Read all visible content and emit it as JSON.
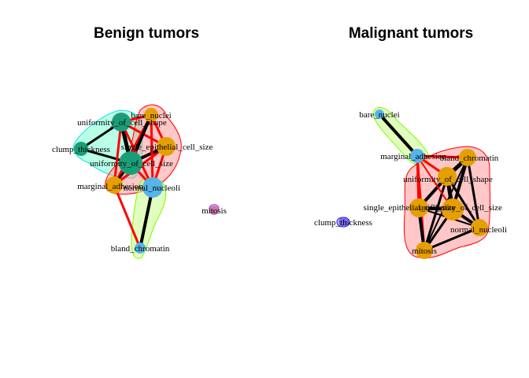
{
  "panels": [
    {
      "title": "Benign tumors",
      "nodes": [
        {
          "id": "bare_nuclei",
          "label": "bare_nuclei",
          "color": "#E69F00"
        },
        {
          "id": "uniformity_of_cell_shape",
          "label": "uniformity_of_cell_shape",
          "color": "#1B9E77"
        },
        {
          "id": "clump_thickness",
          "label": "clump_thickness",
          "color": "#1B9E77"
        },
        {
          "id": "single_epithelial_cell_size",
          "label": "single_epithelial_cell_size",
          "color": "#E69F00"
        },
        {
          "id": "uniformity_of_cell_size",
          "label": "uniformity_of_cell_size",
          "color": "#1B9E77"
        },
        {
          "id": "marginal_adhesion",
          "label": "marginal_adhesion",
          "color": "#E69F00"
        },
        {
          "id": "normal_nucleoli",
          "label": "normal_nucleoli",
          "color": "#56B4E9"
        },
        {
          "id": "mitosis",
          "label": "mitosis",
          "color": "#CC79A7"
        },
        {
          "id": "bland_chromatin",
          "label": "bland_chromatin",
          "color": "#56B4E9"
        }
      ],
      "groups": [
        {
          "fill": "#7FFFD4",
          "stroke": "#00E5EE",
          "members": [
            "uniformity_of_cell_shape",
            "clump_thickness",
            "uniformity_of_cell_size"
          ]
        },
        {
          "fill": "#FF9999",
          "stroke": "#FF0000",
          "members": [
            "bare_nuclei",
            "single_epithelial_cell_size",
            "marginal_adhesion"
          ]
        },
        {
          "fill": "#C6FF8A",
          "stroke": "#7CFC00",
          "members": [
            "normal_nucleoli",
            "bland_chromatin"
          ]
        },
        {
          "fill": "#D8B4F0",
          "stroke": "#8A2BE2",
          "members": [
            "mitosis"
          ]
        }
      ],
      "edges": [
        {
          "from": "uniformity_of_cell_shape",
          "to": "clump_thickness",
          "width": 3,
          "color": "#000000"
        },
        {
          "from": "uniformity_of_cell_shape",
          "to": "uniformity_of_cell_size",
          "width": 5,
          "color": "#000000"
        },
        {
          "from": "clump_thickness",
          "to": "uniformity_of_cell_size",
          "width": 3,
          "color": "#000000"
        },
        {
          "from": "bare_nuclei",
          "to": "single_epithelial_cell_size",
          "width": 3,
          "color": "#FF0000"
        },
        {
          "from": "bare_nuclei",
          "to": "marginal_adhesion",
          "width": 3,
          "color": "#FF0000"
        },
        {
          "from": "single_epithelial_cell_size",
          "to": "marginal_adhesion",
          "width": 3,
          "color": "#FF0000"
        },
        {
          "from": "uniformity_of_cell_shape",
          "to": "bare_nuclei",
          "width": 3,
          "color": "#FF0000"
        },
        {
          "from": "uniformity_of_cell_shape",
          "to": "single_epithelial_cell_size",
          "width": 3,
          "color": "#FF0000"
        },
        {
          "from": "uniformity_of_cell_size",
          "to": "bare_nuclei",
          "width": 4,
          "color": "#000000"
        },
        {
          "from": "uniformity_of_cell_size",
          "to": "single_epithelial_cell_size",
          "width": 4,
          "color": "#000000"
        },
        {
          "from": "uniformity_of_cell_size",
          "to": "marginal_adhesion",
          "width": 3,
          "color": "#000000"
        },
        {
          "from": "uniformity_of_cell_size",
          "to": "normal_nucleoli",
          "width": 3,
          "color": "#FF0000"
        },
        {
          "from": "bare_nuclei",
          "to": "normal_nucleoli",
          "width": 3,
          "color": "#FF0000"
        },
        {
          "from": "single_epithelial_cell_size",
          "to": "normal_nucleoli",
          "width": 3,
          "color": "#FF0000"
        },
        {
          "from": "uniformity_of_cell_shape",
          "to": "marginal_adhesion",
          "width": 3,
          "color": "#FF0000"
        },
        {
          "from": "normal_nucleoli",
          "to": "bland_chromatin",
          "width": 4,
          "color": "#000000"
        },
        {
          "from": "marginal_adhesion",
          "to": "bland_chromatin",
          "width": 3,
          "color": "#FF0000"
        },
        {
          "from": "uniformity_of_cell_shape",
          "to": "normal_nucleoli",
          "width": 3,
          "color": "#FF0000"
        }
      ]
    },
    {
      "title": "Malignant tumors",
      "nodes": [
        {
          "id": "bare_nuclei",
          "label": "bare_nuclei",
          "color": "#56B4E9"
        },
        {
          "id": "marginal_adhesion",
          "label": "marginal_adhesion",
          "color": "#56B4E9"
        },
        {
          "id": "bland_chromatin",
          "label": "bland_chromatin",
          "color": "#E69F00"
        },
        {
          "id": "uniformity_of_cell_shape",
          "label": "uniformity_of_cell_shape",
          "color": "#E69F00"
        },
        {
          "id": "single_epithelial_cell_size",
          "label": "single_epithelial_cell_size",
          "color": "#E69F00"
        },
        {
          "id": "uniformity_of_cell_size",
          "label": "uniformity_of_cell_size",
          "color": "#E69F00"
        },
        {
          "id": "normal_nucleoli",
          "label": "normal_nucleoli",
          "color": "#E69F00"
        },
        {
          "id": "clump_thickness",
          "label": "clump_thickness",
          "color": "#7B68EE"
        },
        {
          "id": "mitosis",
          "label": "mitosis",
          "color": "#E69F00"
        }
      ],
      "groups": [
        {
          "fill": "#C6FF8A",
          "stroke": "#7CFC00",
          "members": [
            "bare_nuclei",
            "marginal_adhesion"
          ]
        },
        {
          "fill": "#FF9999",
          "stroke": "#FF0000",
          "members": [
            "bland_chromatin",
            "uniformity_of_cell_shape",
            "single_epithelial_cell_size",
            "uniformity_of_cell_size",
            "normal_nucleoli",
            "mitosis"
          ]
        },
        {
          "fill": "#D8B4F0",
          "stroke": "#0000FF",
          "members": [
            "clump_thickness"
          ]
        }
      ],
      "edges": [
        {
          "from": "bare_nuclei",
          "to": "marginal_adhesion",
          "width": 4,
          "color": "#000000"
        },
        {
          "from": "marginal_adhesion",
          "to": "bland_chromatin",
          "width": 3,
          "color": "#FF0000"
        },
        {
          "from": "marginal_adhesion",
          "to": "uniformity_of_cell_shape",
          "width": 3,
          "color": "#FF0000"
        },
        {
          "from": "marginal_adhesion",
          "to": "mitosis",
          "width": 3,
          "color": "#FF0000"
        },
        {
          "from": "marginal_adhesion",
          "to": "single_epithelial_cell_size",
          "width": 3,
          "color": "#FF0000"
        },
        {
          "from": "bland_chromatin",
          "to": "uniformity_of_cell_shape",
          "width": 5,
          "color": "#000000"
        },
        {
          "from": "bland_chromatin",
          "to": "uniformity_of_cell_size",
          "width": 4,
          "color": "#000000"
        },
        {
          "from": "bland_chromatin",
          "to": "normal_nucleoli",
          "width": 3,
          "color": "#000000"
        },
        {
          "from": "uniformity_of_cell_shape",
          "to": "uniformity_of_cell_size",
          "width": 5,
          "color": "#000000"
        },
        {
          "from": "uniformity_of_cell_shape",
          "to": "single_epithelial_cell_size",
          "width": 4,
          "color": "#000000"
        },
        {
          "from": "uniformity_of_cell_shape",
          "to": "normal_nucleoli",
          "width": 3,
          "color": "#000000"
        },
        {
          "from": "single_epithelial_cell_size",
          "to": "uniformity_of_cell_size",
          "width": 4,
          "color": "#000000"
        },
        {
          "from": "single_epithelial_cell_size",
          "to": "mitosis",
          "width": 4,
          "color": "#000000"
        },
        {
          "from": "uniformity_of_cell_size",
          "to": "normal_nucleoli",
          "width": 4,
          "color": "#000000"
        },
        {
          "from": "uniformity_of_cell_size",
          "to": "mitosis",
          "width": 3,
          "color": "#000000"
        },
        {
          "from": "normal_nucleoli",
          "to": "mitosis",
          "width": 3,
          "color": "#000000"
        },
        {
          "from": "single_epithelial_cell_size",
          "to": "normal_nucleoli",
          "width": 2,
          "color": "#000000"
        },
        {
          "from": "uniformity_of_cell_shape",
          "to": "mitosis",
          "width": 3,
          "color": "#000000"
        },
        {
          "from": "bland_chromatin",
          "to": "mitosis",
          "width": 2,
          "color": "#000000"
        },
        {
          "from": "marginal_adhesion",
          "to": "uniformity_of_cell_size",
          "width": 2,
          "color": "#FF0000"
        }
      ]
    }
  ]
}
